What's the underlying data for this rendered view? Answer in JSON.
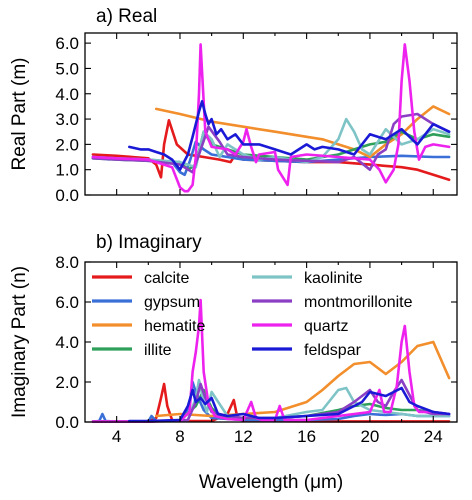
{
  "chart_data": [
    {
      "type": "line",
      "title": "a) Real",
      "xlabel": "",
      "ylabel": "Real Part (m)",
      "xlim": [
        2.0,
        25.5
      ],
      "ylim": [
        0.0,
        6.4
      ],
      "xticks": [
        4,
        8,
        12,
        16,
        20,
        24
      ],
      "xtick_labels": [],
      "yticks": [
        0.0,
        1.0,
        2.0,
        3.0,
        4.0,
        5.0,
        6.0
      ],
      "ytick_labels": [
        "0.0",
        "1.0",
        "2.0",
        "3.0",
        "4.0",
        "5.0",
        "6.0"
      ],
      "series": [
        {
          "name": "calcite",
          "color": "#e41a1c",
          "x": [
            2.5,
            4,
            5,
            6,
            6.5,
            6.8,
            7.0,
            7.3,
            7.8,
            8.5,
            9.5,
            10.5,
            11.2,
            11.5,
            12,
            14,
            16,
            18,
            20,
            22,
            23,
            24,
            25
          ],
          "y": [
            1.6,
            1.55,
            1.5,
            1.45,
            1.2,
            0.7,
            2.0,
            2.95,
            2.0,
            1.6,
            1.5,
            1.4,
            1.3,
            1.6,
            1.4,
            1.35,
            1.3,
            1.3,
            1.2,
            1.1,
            1.0,
            0.8,
            0.6
          ]
        },
        {
          "name": "gypsum",
          "color": "#3a6fd8",
          "x": [
            2.5,
            4,
            6,
            7.5,
            8,
            8.3,
            8.6,
            9,
            9.5,
            10,
            11,
            12,
            14,
            16,
            18,
            20,
            22,
            24,
            25
          ],
          "y": [
            1.5,
            1.45,
            1.4,
            1.3,
            0.9,
            0.8,
            1.3,
            2.1,
            1.8,
            1.6,
            1.5,
            1.4,
            1.35,
            1.3,
            1.4,
            1.5,
            1.55,
            1.5,
            1.5
          ]
        },
        {
          "name": "hematite",
          "color": "#f28e2b",
          "x": [
            6.5,
            8,
            10,
            12,
            14,
            16,
            17,
            18,
            19,
            20,
            21,
            22,
            23,
            24,
            25
          ],
          "y": [
            3.4,
            3.2,
            2.9,
            2.7,
            2.5,
            2.3,
            2.2,
            2.0,
            1.8,
            1.5,
            2.0,
            2.4,
            3.0,
            3.5,
            3.2
          ]
        },
        {
          "name": "illite",
          "color": "#2fa05a",
          "x": [
            2.5,
            4,
            6,
            8,
            8.5,
            9,
            9.5,
            10,
            11,
            12,
            14,
            16,
            18,
            19,
            20,
            21,
            22,
            23,
            24,
            25
          ],
          "y": [
            1.45,
            1.4,
            1.35,
            1.3,
            1.0,
            1.2,
            2.5,
            2.0,
            1.8,
            1.6,
            1.5,
            1.4,
            1.6,
            1.8,
            2.0,
            2.1,
            2.5,
            2.2,
            2.4,
            2.3
          ]
        },
        {
          "name": "kaolinite",
          "color": "#7ec4c7",
          "x": [
            2.5,
            3.5,
            4,
            6,
            8,
            9,
            9.5,
            10,
            10.5,
            11,
            12,
            13,
            14,
            16,
            17,
            18,
            18.5,
            19,
            19.5,
            20,
            21,
            22,
            23,
            24,
            25
          ],
          "y": [
            1.5,
            1.4,
            1.45,
            1.4,
            1.3,
            1.1,
            2.5,
            2.2,
            1.5,
            2.0,
            1.6,
            1.4,
            1.5,
            1.3,
            1.5,
            2.2,
            3.0,
            2.5,
            1.8,
            1.6,
            2.6,
            2.0,
            2.2,
            2.6,
            2.4
          ]
        },
        {
          "name": "montmorillonite",
          "color": "#8b3fc4",
          "x": [
            2.5,
            4,
            6,
            8,
            8.8,
            9.2,
            9.8,
            10.5,
            11,
            12,
            14,
            16,
            18,
            19,
            20,
            20.5,
            21,
            21.5,
            22,
            23,
            24,
            25
          ],
          "y": [
            1.45,
            1.4,
            1.35,
            1.2,
            0.9,
            1.6,
            2.7,
            2.1,
            1.6,
            1.5,
            1.4,
            1.35,
            1.3,
            1.5,
            1.0,
            1.6,
            1.8,
            2.8,
            3.1,
            3.2,
            2.8,
            2.5
          ]
        },
        {
          "name": "quartz",
          "color": "#ee22ee",
          "x": [
            2.5,
            4,
            6,
            7.5,
            8,
            8.3,
            8.5,
            8.8,
            9.0,
            9.2,
            9.3,
            9.6,
            10,
            11,
            11.5,
            12,
            12.2,
            12.5,
            12.8,
            13,
            14,
            14.2,
            14.8,
            15,
            16,
            18,
            20,
            20.6,
            21,
            21.5,
            21.8,
            22.0,
            22.2,
            22.5,
            22.8,
            23.1,
            23.5,
            24,
            25
          ],
          "y": [
            1.5,
            1.45,
            1.4,
            1.1,
            0.3,
            0.15,
            0.15,
            0.4,
            1.5,
            4.0,
            5.95,
            2.5,
            1.9,
            1.8,
            1.6,
            2.1,
            2.6,
            1.9,
            1.3,
            1.6,
            1.7,
            1.0,
            0.4,
            1.5,
            1.6,
            1.5,
            1.4,
            1.0,
            0.5,
            1.0,
            2.0,
            4.5,
            5.95,
            4.5,
            2.5,
            1.4,
            1.9,
            2.0,
            1.9
          ]
        },
        {
          "name": "feldspar",
          "color": "#1a1ad6",
          "x": [
            4.8,
            5.5,
            6,
            6.5,
            7,
            7.5,
            8,
            8.5,
            8.8,
            9.0,
            9.2,
            9.4,
            9.6,
            9.8,
            10,
            10.3,
            10.6,
            11,
            11.5,
            12,
            13,
            14,
            15,
            16,
            16.5,
            17,
            18,
            19,
            20,
            21,
            22,
            23,
            24,
            25
          ],
          "y": [
            1.9,
            1.8,
            1.8,
            1.7,
            1.6,
            1.4,
            1.0,
            1.6,
            2.3,
            2.8,
            3.3,
            3.7,
            3.2,
            2.8,
            3.0,
            2.4,
            2.6,
            2.2,
            2.4,
            2.0,
            2.0,
            1.8,
            1.6,
            2.0,
            1.8,
            1.9,
            1.8,
            1.6,
            2.4,
            2.2,
            2.6,
            2.0,
            2.8,
            2.5
          ]
        }
      ]
    },
    {
      "type": "line",
      "title": "b) Imaginary",
      "xlabel": "Wavelength (μm)",
      "ylabel": "Imaginary Part (n)",
      "xlim": [
        2.0,
        25.5
      ],
      "ylim": [
        0.0,
        8.0
      ],
      "xticks": [
        4,
        8,
        12,
        16,
        20,
        24
      ],
      "xtick_labels": [
        "4",
        "8",
        "12",
        "16",
        "20",
        "24"
      ],
      "yticks": [
        0.0,
        2.0,
        4.0,
        6.0,
        8.0
      ],
      "ytick_labels": [
        "0.0",
        "2.0",
        "4.0",
        "6.0",
        "8.0"
      ],
      "legend": {
        "placement": "upper",
        "columns": 2
      },
      "series": [
        {
          "name": "calcite",
          "color": "#e41a1c",
          "x": [
            2.5,
            6,
            6.5,
            6.8,
            7.0,
            7.2,
            7.5,
            8,
            9,
            10,
            11,
            11.4,
            11.6,
            12,
            13,
            14,
            18,
            25
          ],
          "y": [
            0.02,
            0.02,
            0.2,
            1.2,
            1.9,
            0.8,
            0.1,
            0.05,
            0.05,
            0.05,
            0.4,
            1.1,
            0.3,
            0.05,
            0.05,
            0.04,
            0.03,
            0.03
          ]
        },
        {
          "name": "gypsum",
          "color": "#3a6fd8",
          "x": [
            2.5,
            2.9,
            3.1,
            3.3,
            4,
            6,
            6.2,
            6.5,
            8,
            8.6,
            8.8,
            9.0,
            9.5,
            10,
            12,
            14,
            16,
            18,
            19,
            20,
            21,
            22,
            23,
            24,
            25
          ],
          "y": [
            0.02,
            0.05,
            0.4,
            0.05,
            0.02,
            0.02,
            0.3,
            0.05,
            0.05,
            0.8,
            2.0,
            1.5,
            0.6,
            0.2,
            0.1,
            0.1,
            0.1,
            0.15,
            0.3,
            0.4,
            0.35,
            0.4,
            0.3,
            0.3,
            0.3
          ]
        },
        {
          "name": "hematite",
          "color": "#f28e2b",
          "x": [
            6.5,
            8,
            10,
            12,
            14,
            16,
            17,
            18,
            19,
            20,
            21,
            22,
            23,
            24,
            25
          ],
          "y": [
            0.3,
            0.4,
            0.3,
            0.4,
            0.5,
            1.0,
            1.6,
            2.3,
            2.9,
            3.0,
            2.4,
            3.0,
            3.8,
            4.0,
            2.2
          ]
        },
        {
          "name": "illite",
          "color": "#2fa05a",
          "x": [
            2.5,
            6,
            8,
            9,
            9.5,
            10,
            10.5,
            11,
            12,
            14,
            16,
            18,
            19,
            20,
            21,
            22,
            23,
            24,
            25
          ],
          "y": [
            0.02,
            0.02,
            0.1,
            0.8,
            1.6,
            0.7,
            0.3,
            0.2,
            0.2,
            0.2,
            0.3,
            0.6,
            0.8,
            0.9,
            0.7,
            0.6,
            0.6,
            0.5,
            0.4
          ]
        },
        {
          "name": "kaolinite",
          "color": "#7ec4c7",
          "x": [
            2.5,
            6,
            8.5,
            9.0,
            9.2,
            9.5,
            9.7,
            10,
            11,
            12,
            13,
            14,
            16,
            17,
            18,
            18.5,
            19,
            19.5,
            20,
            21,
            22,
            23,
            24,
            25
          ],
          "y": [
            0.02,
            0.02,
            0.1,
            1.2,
            2.1,
            1.0,
            0.5,
            1.5,
            0.3,
            0.2,
            0.2,
            0.2,
            0.5,
            0.6,
            1.6,
            1.7,
            1.0,
            0.8,
            0.6,
            0.5,
            0.4,
            0.3,
            0.3,
            0.3
          ]
        },
        {
          "name": "montmorillonite",
          "color": "#8b3fc4",
          "x": [
            2.5,
            6,
            8.5,
            9.0,
            9.3,
            9.6,
            10,
            11,
            12,
            14,
            16,
            18,
            19,
            20,
            20.5,
            21,
            21.5,
            22,
            23,
            24,
            25
          ],
          "y": [
            0.02,
            0.02,
            0.1,
            1.0,
            1.9,
            1.2,
            0.5,
            0.3,
            0.2,
            0.2,
            0.3,
            0.5,
            1.0,
            1.6,
            1.0,
            0.8,
            1.5,
            2.1,
            0.6,
            0.4,
            0.4
          ]
        },
        {
          "name": "quartz",
          "color": "#ee22ee",
          "x": [
            2.5,
            6,
            8,
            8.6,
            8.8,
            9.0,
            9.2,
            9.3,
            9.5,
            9.8,
            10.2,
            11,
            12,
            12.5,
            12.8,
            13.2,
            14,
            14.3,
            14.6,
            15,
            16,
            18,
            20,
            20.6,
            20.9,
            21.3,
            21.7,
            22.0,
            22.2,
            22.5,
            22.8,
            23.1,
            24,
            25
          ],
          "y": [
            0.02,
            0.02,
            0.05,
            0.5,
            2.5,
            3.5,
            4.8,
            6.1,
            2.5,
            0.9,
            0.3,
            0.15,
            0.1,
            1.0,
            0.2,
            0.1,
            0.1,
            0.8,
            0.1,
            0.1,
            0.1,
            0.3,
            0.5,
            1.6,
            0.5,
            0.5,
            1.8,
            4.0,
            4.8,
            2.5,
            0.8,
            0.5,
            0.5,
            0.4
          ]
        },
        {
          "name": "feldspar",
          "color": "#1a1ad6",
          "x": [
            4.8,
            6,
            8,
            8.5,
            8.8,
            9.0,
            9.3,
            9.6,
            10,
            10.4,
            11,
            12,
            13,
            14,
            16,
            18,
            19,
            19.5,
            20,
            21,
            22,
            22.5,
            23,
            24,
            25
          ],
          "y": [
            0.05,
            0.05,
            0.1,
            0.8,
            1.6,
            1.0,
            1.2,
            0.9,
            1.2,
            0.4,
            0.3,
            0.4,
            0.2,
            0.2,
            0.3,
            0.4,
            0.8,
            1.0,
            1.5,
            1.3,
            1.7,
            1.0,
            0.8,
            0.5,
            0.4
          ]
        }
      ]
    }
  ]
}
